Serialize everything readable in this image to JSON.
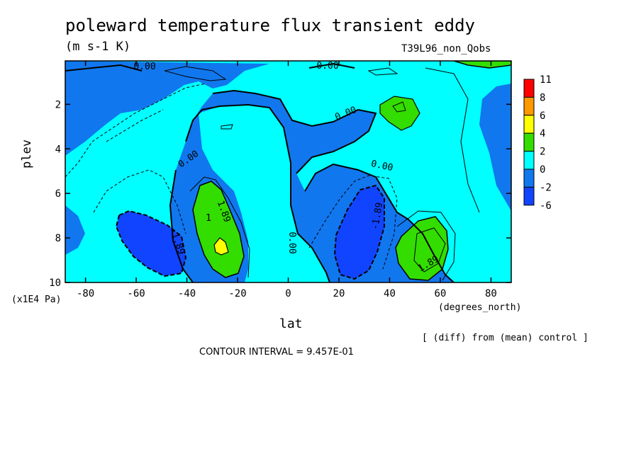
{
  "chart_data": {
    "type": "heatmap",
    "title": "poleward temperature flux transient eddy",
    "units": "(m s-1 K)",
    "run_name": "T39L96_non_Qobs",
    "xlabel": "lat",
    "x_units": "(degrees_north)",
    "ylabel": "plev",
    "y_units": "(x1E4 Pa)",
    "xlim": [
      -88,
      88
    ],
    "ylim": [
      10,
      0.05
    ],
    "x_ticks": [
      "-80",
      "-60",
      "-40",
      "-20",
      "0",
      "20",
      "40",
      "60",
      "80"
    ],
    "y_ticks": [
      "2",
      "4",
      "6",
      "8",
      "10"
    ],
    "footer_note": "[ (diff) from (mean) control ]",
    "contour_interval": "CONTOUR INTERVAL = 9.457E-01",
    "colorbar": {
      "levels": [
        "11",
        "8",
        "6",
        "4",
        "2",
        "0",
        "-2",
        "-6"
      ],
      "colors": [
        "#ff0000",
        "#ff9900",
        "#ffff00",
        "#33dd00",
        "#00ffff",
        "#1177ee",
        "#1144ff"
      ]
    },
    "contour_labels": [
      "0.00",
      "0.00",
      "0.00",
      "0.00",
      "0.00",
      "0.00",
      "-1.89",
      "1.89",
      "1",
      "-1.89",
      "1.89"
    ],
    "regions": [
      {
        "sign": "positive",
        "lat": [
          -38,
          -22
        ],
        "plev": [
          5.5,
          9.8
        ],
        "max": 5
      },
      {
        "sign": "positive",
        "lat": [
          42,
          64
        ],
        "plev": [
          7.3,
          9.8
        ],
        "max": 3
      },
      {
        "sign": "positive",
        "lat": [
          40,
          48
        ],
        "plev": [
          1.6,
          3.2
        ],
        "max": 2.5
      },
      {
        "sign": "negative",
        "lat": [
          -72,
          -42
        ],
        "plev": [
          6.9,
          9.5
        ],
        "min": -3
      },
      {
        "sign": "negative",
        "lat": [
          18,
          38
        ],
        "plev": [
          5.6,
          9.8
        ],
        "min": -3
      }
    ]
  }
}
